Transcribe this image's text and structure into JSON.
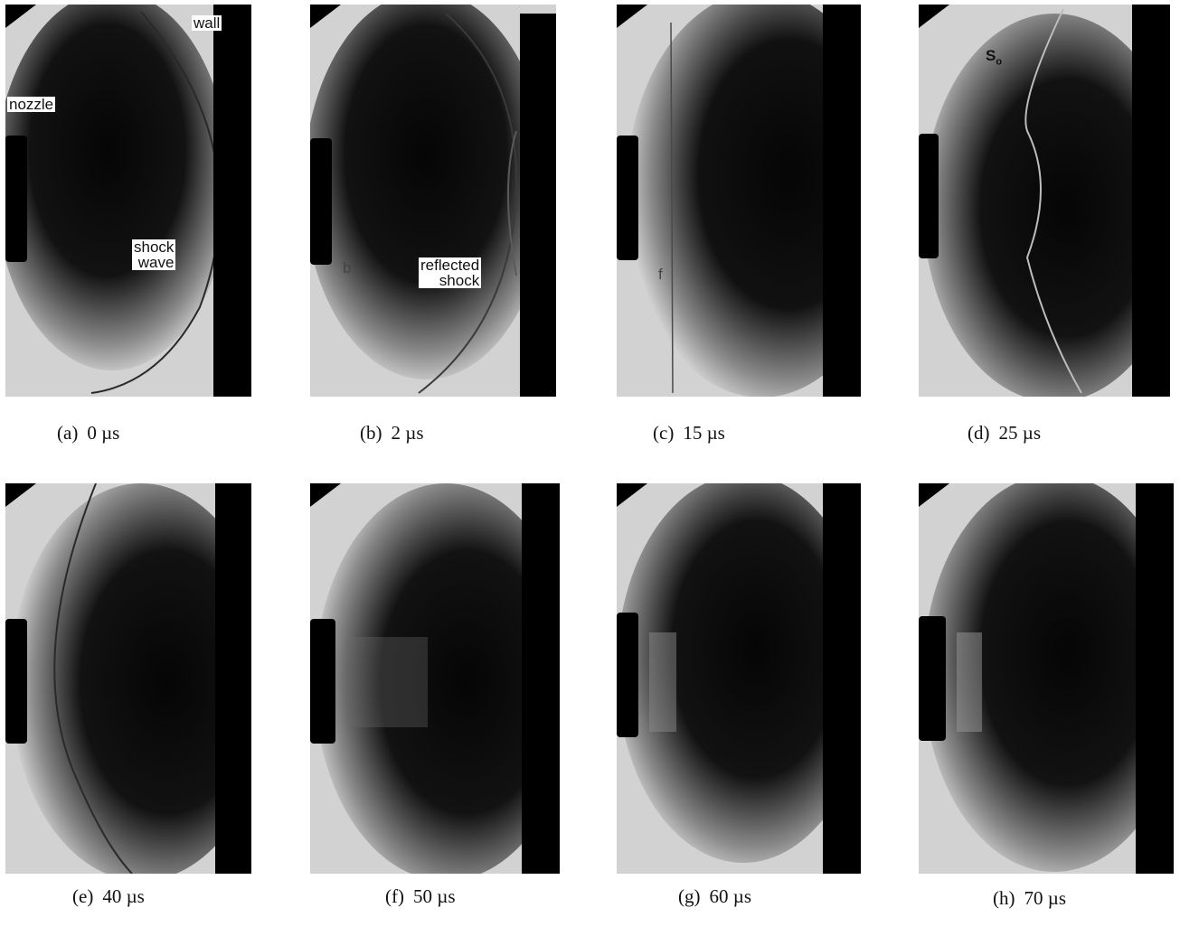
{
  "colors": {
    "background": "#ffffff",
    "schlieren_light": "#d2d2d2",
    "schlieren_dark": "#050505",
    "shock_line": "#2a2a2a",
    "wall": "#000000",
    "nozzle": "#000000"
  },
  "panels": [
    {
      "tag": "(a)",
      "time": "0 µs"
    },
    {
      "tag": "(b)",
      "time": "2 µs"
    },
    {
      "tag": "(c)",
      "time": "15 µs"
    },
    {
      "tag": "(d)",
      "time": "25 µs"
    },
    {
      "tag": "(e)",
      "time": "40 µs"
    },
    {
      "tag": "(f)",
      "time": "50 µs"
    },
    {
      "tag": "(g)",
      "time": "60 µs"
    },
    {
      "tag": "(h)",
      "time": "70 µs"
    }
  ],
  "annotations": {
    "wall": "wall",
    "nozzle": "nozzle",
    "shock_wave_line1": "shock",
    "shock_wave_line2": "wave",
    "reflected_shock_line1": "reflected",
    "reflected_shock_line2": "shock",
    "so": "S",
    "so_sub": "o",
    "b_marker": "b",
    "f_marker": "f"
  }
}
